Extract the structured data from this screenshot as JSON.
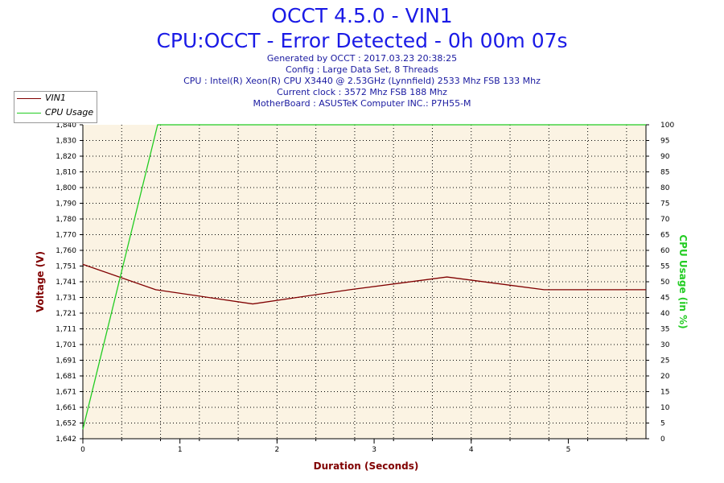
{
  "header": {
    "title": "OCCT 4.5.0 - VIN1",
    "subtitle": "CPU:OCCT - Error Detected - 0h 00m 07s",
    "info_lines": [
      "Generated by OCCT : 2017.03.23 20:38:25",
      "Config : Large Data Set, 8 Threads",
      "CPU : Intel(R) Xeon(R) CPU X3440 @ 2.53GHz (Lynnfield) 2533 Mhz FSB 133 Mhz",
      "Current clock : 3572 Mhz FSB 188 Mhz",
      "MotherBoard : ASUSTeK Computer INC.: P7H55-M"
    ]
  },
  "colors": {
    "voltage": "#800000",
    "cpu": "#22cc22",
    "title": "#1a1ae6",
    "info": "#1a1aa0",
    "plot_bg": "#fbf3e3"
  },
  "chart_data": {
    "type": "line",
    "xlabel": "Duration (Seconds)",
    "ylabel": "Voltage (V)",
    "y2label": "CPU Usage (in %)",
    "xlim": [
      0,
      5.8
    ],
    "ylim": [
      1.642,
      1.84
    ],
    "y2lim": [
      0,
      100
    ],
    "grid": true,
    "legend_position": "top-left",
    "x_ticks": [
      0,
      1,
      2,
      3,
      4,
      5
    ],
    "y_ticks": [
      "1,642",
      "1,652",
      "1,661",
      "1,671",
      "1,681",
      "1,691",
      "1,701",
      "1,711",
      "1,721",
      "1,731",
      "1,741",
      "1,751",
      "1,760",
      "1,770",
      "1,780",
      "1,790",
      "1,800",
      "1,810",
      "1,820",
      "1,830",
      "1,840"
    ],
    "y2_ticks": [
      0,
      5,
      10,
      15,
      20,
      25,
      30,
      35,
      40,
      45,
      50,
      55,
      60,
      65,
      70,
      75,
      80,
      85,
      90,
      95,
      100
    ],
    "series": [
      {
        "name": "VIN1",
        "axis": "left",
        "x": [
          0,
          0.75,
          1.75,
          2.75,
          3.75,
          4.75,
          5.8
        ],
        "values": [
          1.752,
          1.736,
          1.727,
          1.736,
          1.744,
          1.736,
          1.736
        ]
      },
      {
        "name": "CPU Usage",
        "axis": "right",
        "x": [
          0,
          0.77,
          5.8
        ],
        "values": [
          3,
          100,
          100
        ]
      }
    ]
  }
}
